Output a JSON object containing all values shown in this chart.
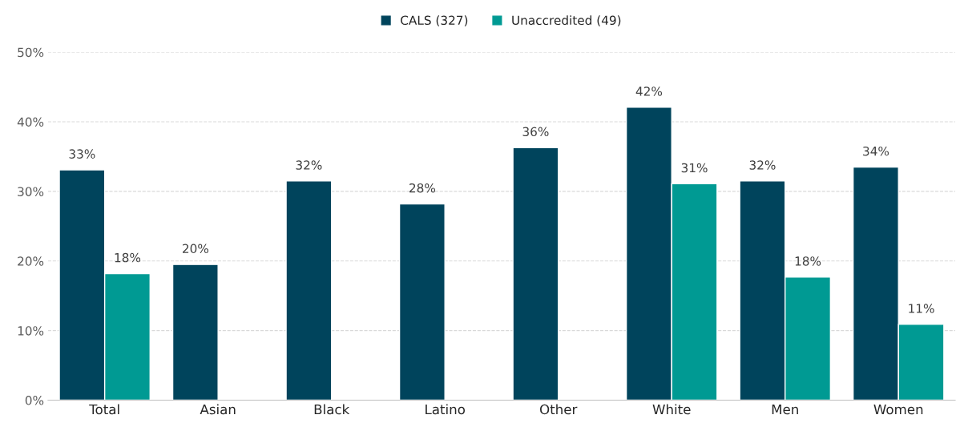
{
  "chart_data": {
    "type": "bar",
    "categories": [
      "Total",
      "Asian",
      "Black",
      "Latino",
      "Other",
      "White",
      "Men",
      "Women"
    ],
    "series": [
      {
        "name": "CALS (327)",
        "color": "#00445c",
        "values": [
          33.1,
          19.5,
          31.5,
          28.2,
          36.3,
          42.1,
          31.5,
          33.5
        ],
        "value_labels": [
          "33%",
          "20%",
          "32%",
          "28%",
          "36%",
          "42%",
          "32%",
          "34%"
        ]
      },
      {
        "name": "Unaccredited (49)",
        "color": "#009a93",
        "values": [
          18.2,
          null,
          null,
          null,
          null,
          31.1,
          17.7,
          10.9
        ],
        "value_labels": [
          "18%",
          null,
          null,
          null,
          null,
          "31%",
          "18%",
          "11%"
        ]
      }
    ],
    "ylim": [
      0,
      50
    ],
    "yticks": [
      {
        "value": 0,
        "label": "0%"
      },
      {
        "value": 10,
        "label": "10%"
      },
      {
        "value": 20,
        "label": "20%"
      },
      {
        "value": 30,
        "label": "30%"
      },
      {
        "value": 40,
        "label": "40%"
      },
      {
        "value": 50,
        "label": "50%"
      }
    ],
    "grid": "y",
    "legend": "top"
  }
}
